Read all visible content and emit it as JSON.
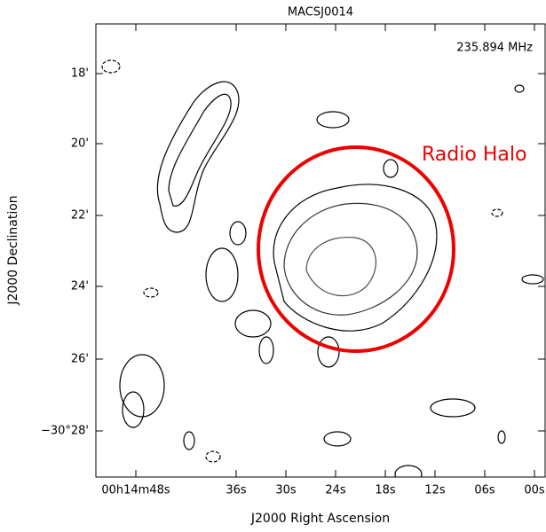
{
  "header": {
    "title": "MACSJ0014"
  },
  "plot": {
    "frequency": "235.894 MHz",
    "annotation": "Radio Halo",
    "x_axis": {
      "label": "J2000 Right Ascension",
      "ticks": [
        "00h14m48s",
        "36s",
        "30s",
        "24s",
        "18s",
        "12s",
        "06s",
        "00s"
      ]
    },
    "y_axis": {
      "label": "J2000 Declination",
      "ticks": [
        "18'",
        "20'",
        "22'",
        "24'",
        "26'",
        "−30°28'"
      ]
    }
  }
}
